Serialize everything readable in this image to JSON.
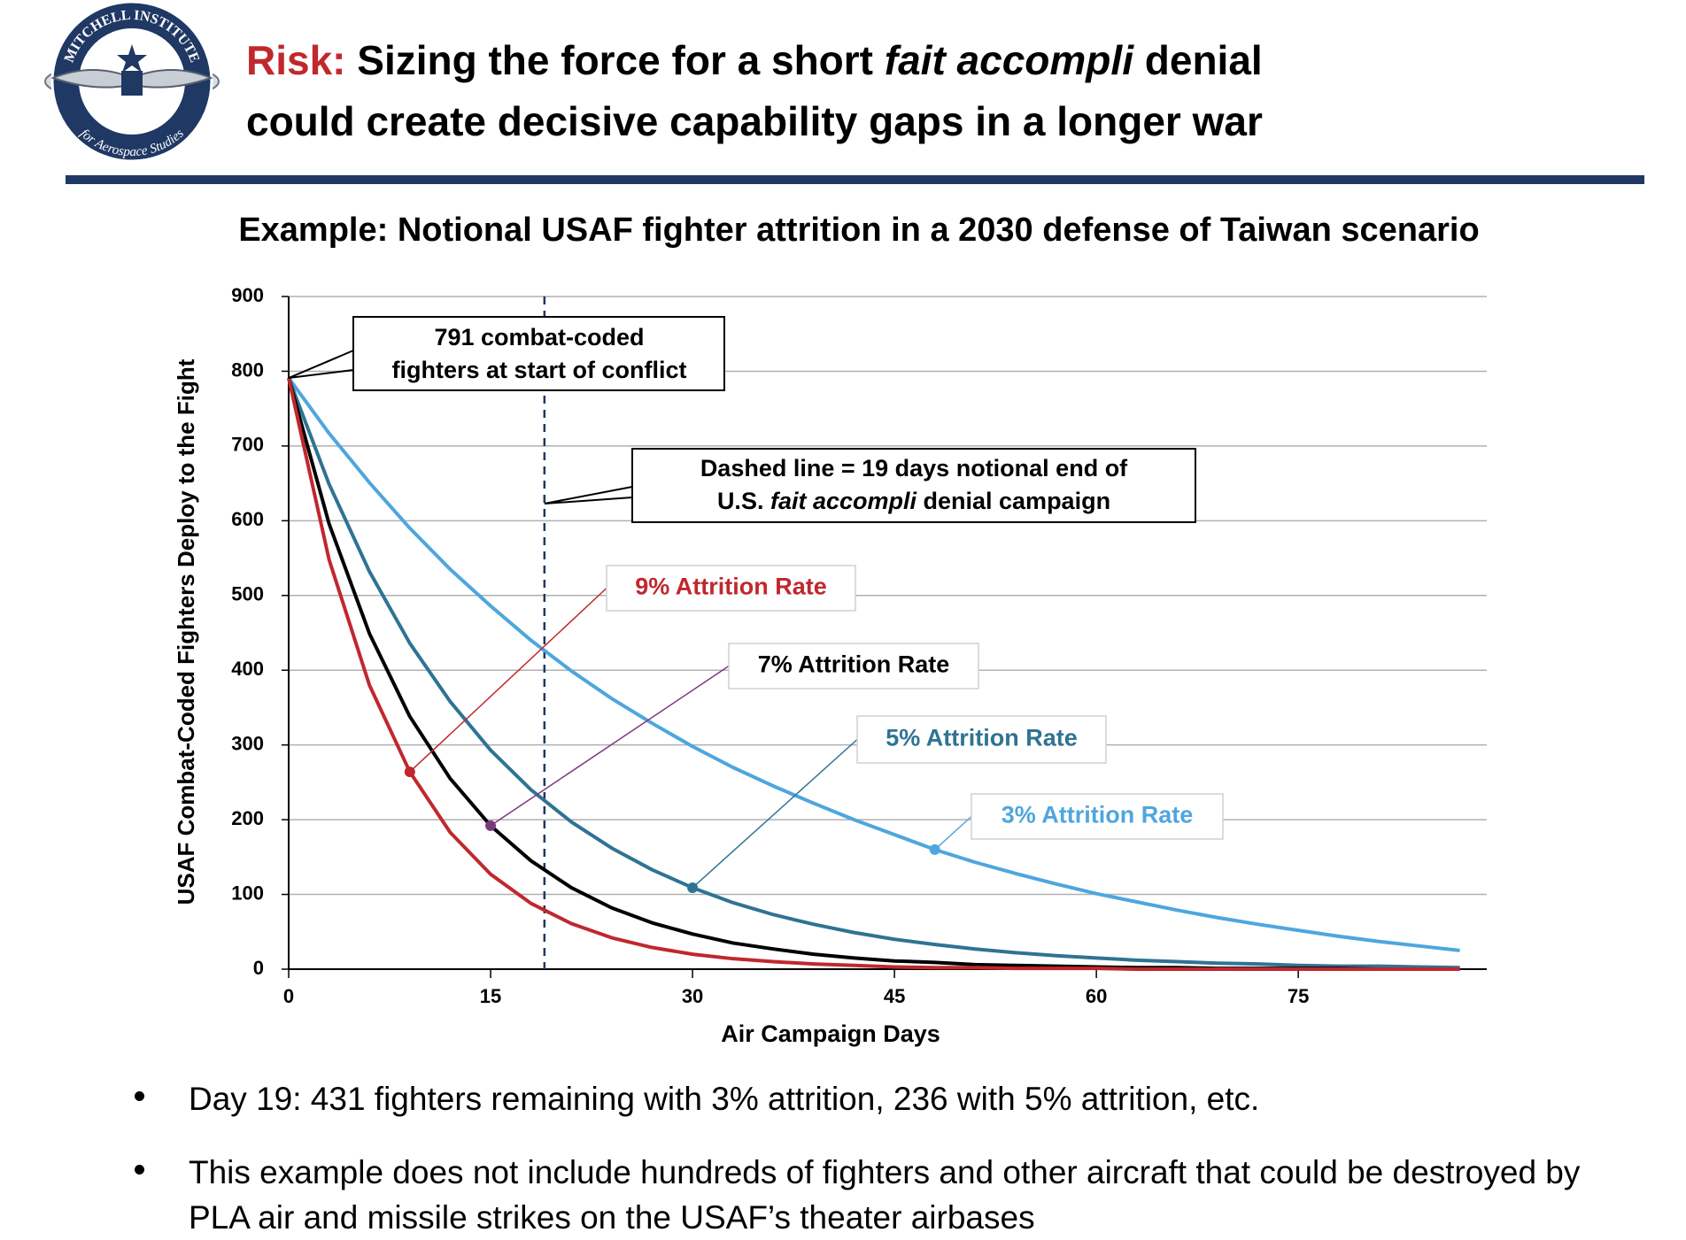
{
  "header": {
    "logo_top": "MITCHELL INSTITUTE",
    "logo_bottom": "for Aerospace Studies",
    "title_lead": "Risk:",
    "title_parts": [
      " Sizing the force for a short ",
      "fait accompli",
      " denial"
    ],
    "title_line2": "could create decisive capability gaps in a longer war"
  },
  "chart_data": {
    "type": "line",
    "title": "Example: Notional USAF fighter attrition in a 2030 defense of Taiwan scenario",
    "x_label": "Air Campaign Days",
    "y_label": "USAF Combat-Coded Fighters Deploy to the Fight",
    "x": [
      0,
      3,
      6,
      9,
      12,
      15,
      18,
      21,
      24,
      27,
      30,
      33,
      36,
      39,
      42,
      45,
      48,
      51,
      54,
      57,
      60,
      63,
      66,
      69,
      72,
      75,
      78,
      81,
      84,
      87
    ],
    "series": [
      {
        "name": "9% Attrition Rate",
        "color": "#c0282d",
        "values": [
          791,
          548,
          380,
          264,
          183,
          127,
          88,
          61,
          42,
          29,
          20,
          14,
          10,
          7,
          5,
          3,
          2,
          2,
          1,
          1,
          1,
          0,
          0,
          0,
          0,
          0,
          0,
          0,
          0,
          0
        ]
      },
      {
        "name": "7% Attrition Rate",
        "color": "#000000",
        "values": [
          791,
          596,
          449,
          338,
          255,
          192,
          145,
          109,
          82,
          62,
          47,
          35,
          27,
          20,
          15,
          11,
          9,
          6,
          5,
          4,
          3,
          2,
          2,
          1,
          1,
          1,
          1,
          0,
          0,
          0
        ]
      },
      {
        "name": "5% Attrition Rate",
        "color": "#2f7393",
        "values": [
          791,
          649,
          532,
          436,
          358,
          293,
          240,
          197,
          162,
          133,
          109,
          89,
          73,
          60,
          49,
          40,
          33,
          27,
          22,
          18,
          15,
          12,
          10,
          8,
          7,
          5,
          4,
          4,
          3,
          2
        ]
      },
      {
        "name": "3% Attrition Rate",
        "color": "#4ea6de",
        "values": [
          791,
          717,
          651,
          590,
          535,
          486,
          440,
          399,
          362,
          329,
          298,
          270,
          245,
          222,
          200,
          180,
          160,
          143,
          128,
          114,
          101,
          90,
          79,
          69,
          60,
          52,
          44,
          37,
          31,
          25
        ]
      }
    ],
    "xlim": [
      0,
      89
    ],
    "xticks": [
      0,
      15,
      30,
      45,
      60,
      75
    ],
    "ylim": [
      0,
      900
    ],
    "yticks": [
      0,
      100,
      200,
      300,
      400,
      500,
      600,
      700,
      800,
      900
    ],
    "grid": true,
    "dashed_x": 19,
    "annotations": {
      "start": [
        "791 combat-coded",
        "fighters at start of conflict"
      ],
      "dashed": [
        "Dashed line = 19 days notional end of",
        "U.S. ",
        "fait accompli",
        " denial campaign"
      ]
    }
  },
  "bullets": [
    "Day 19: 431 fighters remaining with 3% attrition, 236 with 5% attrition, etc.",
    "This example does not include hundreds of fighters and other aircraft that could be destroyed by PLA air and missile strikes on the USAF’s theater airbases"
  ]
}
